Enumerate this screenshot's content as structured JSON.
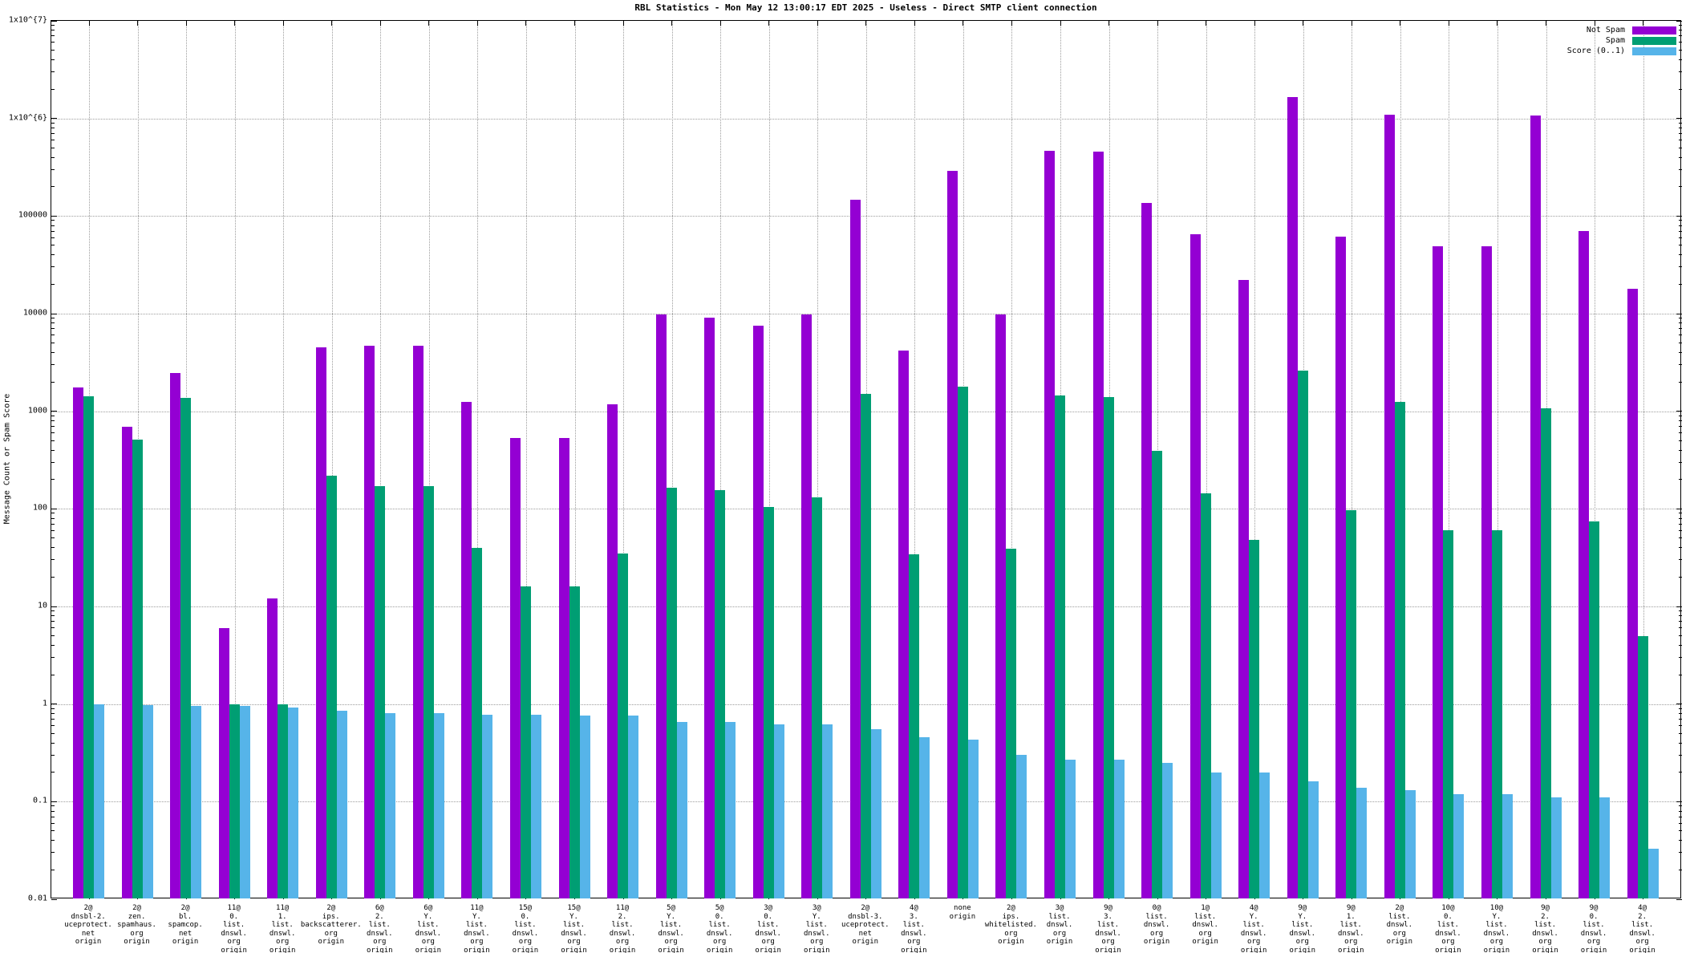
{
  "title": "RBL Statistics - Mon May 12 13:00:17 EDT 2025 - Useless - Direct SMTP client connection",
  "y_axis": {
    "label": "Message Count or Spam Score",
    "scale": "log",
    "ticks": [
      {
        "label": "1x10^{7}",
        "value": 10000000
      },
      {
        "label": "1x10^{6}",
        "value": 1000000
      },
      {
        "label": "100000",
        "value": 100000
      },
      {
        "label": "10000",
        "value": 10000
      },
      {
        "label": "1000",
        "value": 1000
      },
      {
        "label": "100",
        "value": 100
      },
      {
        "label": "10",
        "value": 10
      },
      {
        "label": "1",
        "value": 1
      },
      {
        "label": "0.1",
        "value": 0.1
      },
      {
        "label": "0.01",
        "value": 0.01
      }
    ]
  },
  "legend": {
    "position": "top-right",
    "entries": [
      {
        "label": "Not Spam",
        "color": "#9400d3"
      },
      {
        "label": "Spam",
        "color": "#009e73"
      },
      {
        "label": "Score (0..1)",
        "color": "#56b4e9"
      }
    ]
  },
  "chart_data": {
    "type": "bar",
    "title": "RBL Statistics - Mon May 12 13:00:17 EDT 2025 - Useless - Direct SMTP client connection",
    "xlabel": "",
    "ylabel": "Message Count or Spam Score",
    "yscale": "log",
    "ylim": [
      0.01,
      10000000
    ],
    "grid": true,
    "legend_position": "top-right",
    "categories_lines": [
      [
        "2@",
        "dnsbl-2.",
        "uceprotect.",
        "net",
        "origin"
      ],
      [
        "2@",
        "zen.",
        "spamhaus.",
        "org",
        "origin"
      ],
      [
        "2@",
        "bl.",
        "spamcop.",
        "net",
        "origin"
      ],
      [
        "11@",
        "0.",
        "list.",
        "dnswl.",
        "org",
        "origin"
      ],
      [
        "11@",
        "1.",
        "list.",
        "dnswl.",
        "org",
        "origin"
      ],
      [
        "2@",
        "ips.",
        "backscatterer.",
        "org",
        "origin"
      ],
      [
        "6@",
        "2.",
        "list.",
        "dnswl.",
        "org",
        "origin"
      ],
      [
        "6@",
        "Y.",
        "list.",
        "dnswl.",
        "org",
        "origin"
      ],
      [
        "11@",
        "Y.",
        "list.",
        "dnswl.",
        "org",
        "origin"
      ],
      [
        "15@",
        "0.",
        "list.",
        "dnswl.",
        "org",
        "origin"
      ],
      [
        "15@",
        "Y.",
        "list.",
        "dnswl.",
        "org",
        "origin"
      ],
      [
        "11@",
        "2.",
        "list.",
        "dnswl.",
        "org",
        "origin"
      ],
      [
        "5@",
        "Y.",
        "list.",
        "dnswl.",
        "org",
        "origin"
      ],
      [
        "5@",
        "0.",
        "list.",
        "dnswl.",
        "org",
        "origin"
      ],
      [
        "3@",
        "0.",
        "list.",
        "dnswl.",
        "org",
        "origin"
      ],
      [
        "3@",
        "Y.",
        "list.",
        "dnswl.",
        "org",
        "origin"
      ],
      [
        "2@",
        "dnsbl-3.",
        "uceprotect.",
        "net",
        "origin"
      ],
      [
        "4@",
        "3.",
        "list.",
        "dnswl.",
        "org",
        "origin"
      ],
      [
        "none",
        "origin"
      ],
      [
        "2@",
        "ips.",
        "whitelisted.",
        "org",
        "origin"
      ],
      [
        "3@",
        "list.",
        "dnswl.",
        "org",
        "origin"
      ],
      [
        "9@",
        "3.",
        "list.",
        "dnswl.",
        "org",
        "origin"
      ],
      [
        "0@",
        "list.",
        "dnswl.",
        "org",
        "origin"
      ],
      [
        "1@",
        "list.",
        "dnswl.",
        "org",
        "origin"
      ],
      [
        "4@",
        "Y.",
        "list.",
        "dnswl.",
        "org",
        "origin"
      ],
      [
        "9@",
        "Y.",
        "list.",
        "dnswl.",
        "org",
        "origin"
      ],
      [
        "9@",
        "1.",
        "list.",
        "dnswl.",
        "org",
        "origin"
      ],
      [
        "2@",
        "list.",
        "dnswl.",
        "org",
        "origin"
      ],
      [
        "10@",
        "0.",
        "list.",
        "dnswl.",
        "org",
        "origin"
      ],
      [
        "10@",
        "Y.",
        "list.",
        "dnswl.",
        "org",
        "origin"
      ],
      [
        "9@",
        "2.",
        "list.",
        "dnswl.",
        "org",
        "origin"
      ],
      [
        "9@",
        "0.",
        "list.",
        "dnswl.",
        "org",
        "origin"
      ],
      [
        "4@",
        "2.",
        "list.",
        "dnswl.",
        "org",
        "origin"
      ]
    ],
    "series": [
      {
        "name": "Not Spam",
        "color": "#9400d3",
        "values": [
          1750,
          690,
          2460,
          6,
          12,
          4500,
          4650,
          4700,
          1250,
          530,
          530,
          1180,
          9800,
          9100,
          7500,
          9900,
          147000,
          4200,
          290000,
          9800,
          470000,
          460000,
          136000,
          65000,
          22000,
          1650000,
          61000,
          1090000,
          49000,
          49000,
          1070000,
          70000,
          18000
        ]
      },
      {
        "name": "Spam",
        "color": "#009e73",
        "values": [
          1430,
          510,
          1360,
          1,
          1,
          220,
          170,
          170,
          40,
          16,
          16,
          35,
          165,
          155,
          105,
          130,
          1500,
          34,
          1800,
          39,
          1450,
          1400,
          390,
          143,
          48,
          2600,
          96,
          1250,
          60,
          60,
          1080,
          75,
          5
        ]
      },
      {
        "name": "Score (0..1)",
        "color": "#56b4e9",
        "values": [
          1.0,
          0.98,
          0.95,
          0.95,
          0.92,
          0.86,
          0.81,
          0.81,
          0.78,
          0.77,
          0.76,
          0.76,
          0.66,
          0.66,
          0.62,
          0.62,
          0.55,
          0.46,
          0.43,
          0.3,
          0.27,
          0.27,
          0.25,
          0.2,
          0.2,
          0.16,
          0.14,
          0.13,
          0.12,
          0.12,
          0.11,
          0.11,
          0.033
        ]
      }
    ]
  }
}
